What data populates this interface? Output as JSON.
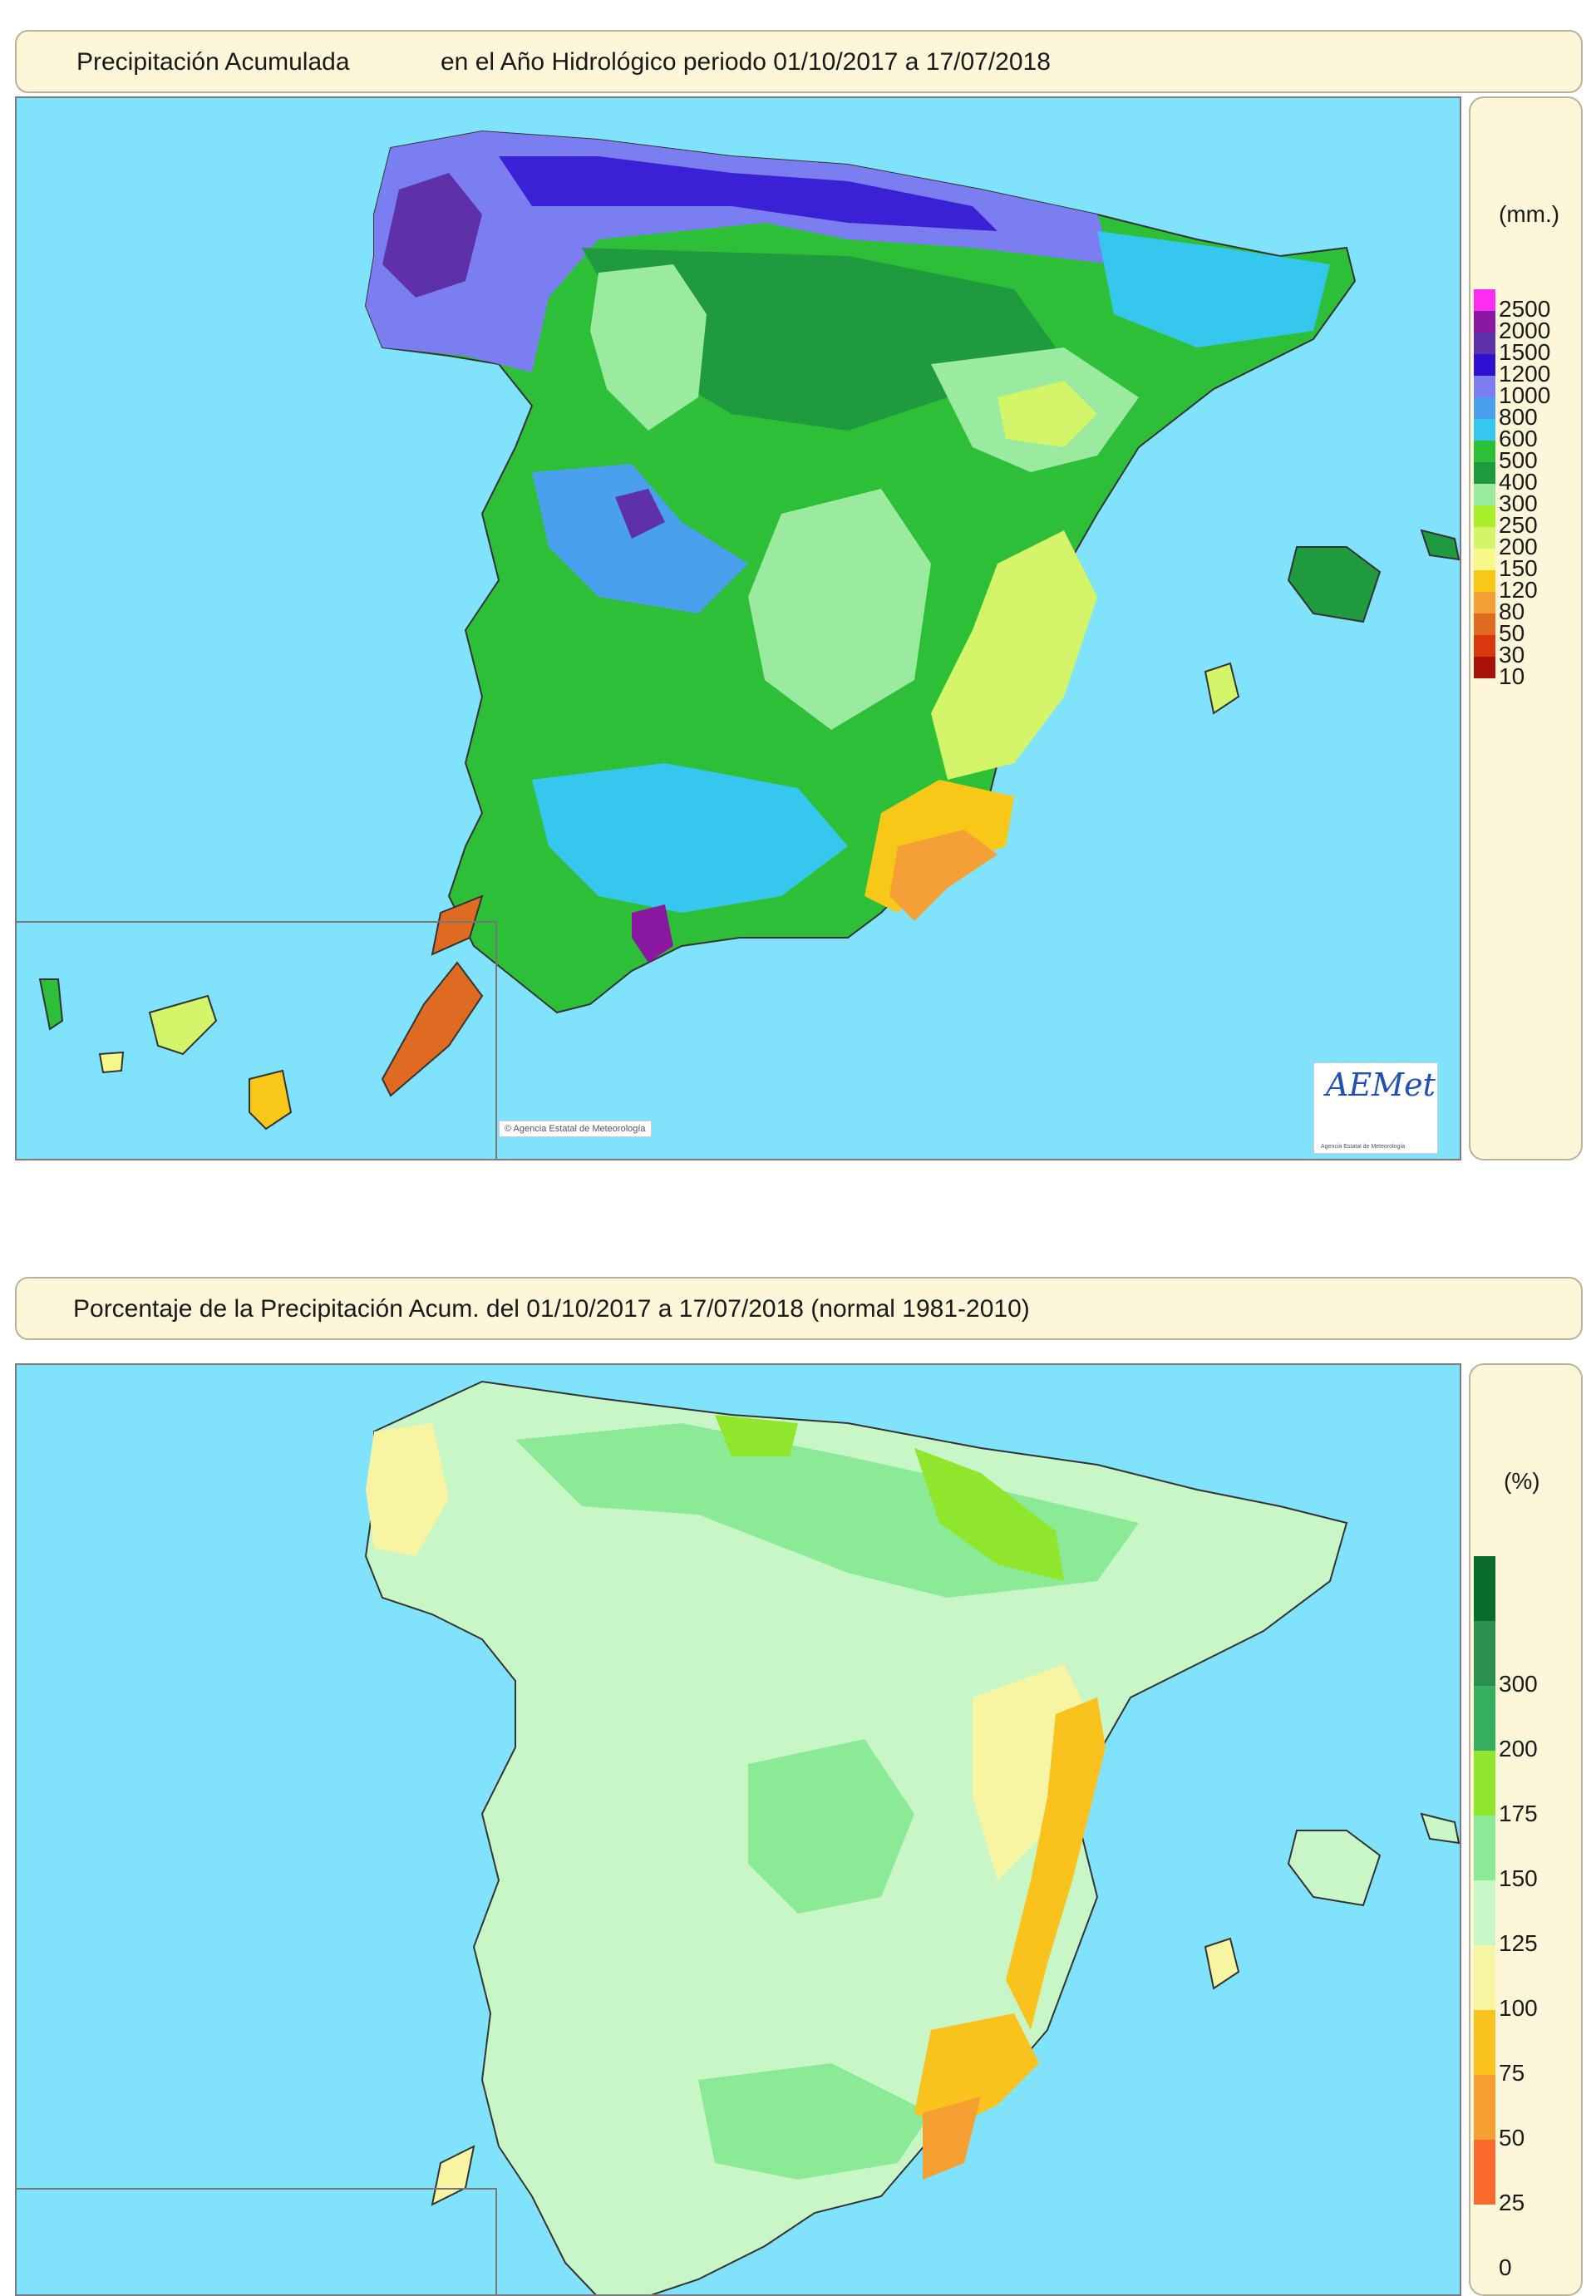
{
  "map1": {
    "title_left": "Precipitación Acumulada",
    "title_right": "en el Año Hidrológico  periodo 01/10/2017 a 17/07/2018",
    "unit": "(mm.)",
    "legend": [
      {
        "label": "2500",
        "color": "#ff2cf2"
      },
      {
        "label": "2000",
        "color": "#8b18a0"
      },
      {
        "label": "1500",
        "color": "#5f31a8"
      },
      {
        "label": "1200",
        "color": "#2f10d0"
      },
      {
        "label": "1000",
        "color": "#7a7ef0"
      },
      {
        "label": "800",
        "color": "#4aa0ec"
      },
      {
        "label": "600",
        "color": "#36c7ef"
      },
      {
        "label": "500",
        "color": "#2ebf39"
      },
      {
        "label": "400",
        "color": "#1f9a3e"
      },
      {
        "label": "300",
        "color": "#9aeaa0"
      },
      {
        "label": "250",
        "color": "#a8ee2c"
      },
      {
        "label": "200",
        "color": "#d4f56a"
      },
      {
        "label": "150",
        "color": "#f7f78a"
      },
      {
        "label": "120",
        "color": "#f8c818"
      },
      {
        "label": "80",
        "color": "#f5a036"
      },
      {
        "label": "50",
        "color": "#df6a22"
      },
      {
        "label": "30",
        "color": "#d9380e"
      },
      {
        "label": "10",
        "color": "#a81208"
      }
    ],
    "credit": "© Agencia Estatal de Meteorología",
    "logo": "AEMet",
    "logo_sub": "Agencia Estatal de Meteorología"
  },
  "map2": {
    "title": "Porcentaje de la Precipitación Acum. del 01/10/2017 a  17/07/2018  (normal 1981-2010)",
    "unit": "(%)",
    "legend": [
      {
        "label": "",
        "color": "#0a6b2f"
      },
      {
        "label": "300",
        "color": "#2a8f50"
      },
      {
        "label": "200",
        "color": "#36b060"
      },
      {
        "label": "175",
        "color": "#8fe62c"
      },
      {
        "label": "150",
        "color": "#8aea96"
      },
      {
        "label": "125",
        "color": "#c8f6c6"
      },
      {
        "label": "100",
        "color": "#f8f5a2"
      },
      {
        "label": "75",
        "color": "#f9c21c"
      },
      {
        "label": "50",
        "color": "#f6a033"
      },
      {
        "label": "25",
        "color": "#f96a2c"
      },
      {
        "label": "0",
        "color": ""
      }
    ]
  }
}
